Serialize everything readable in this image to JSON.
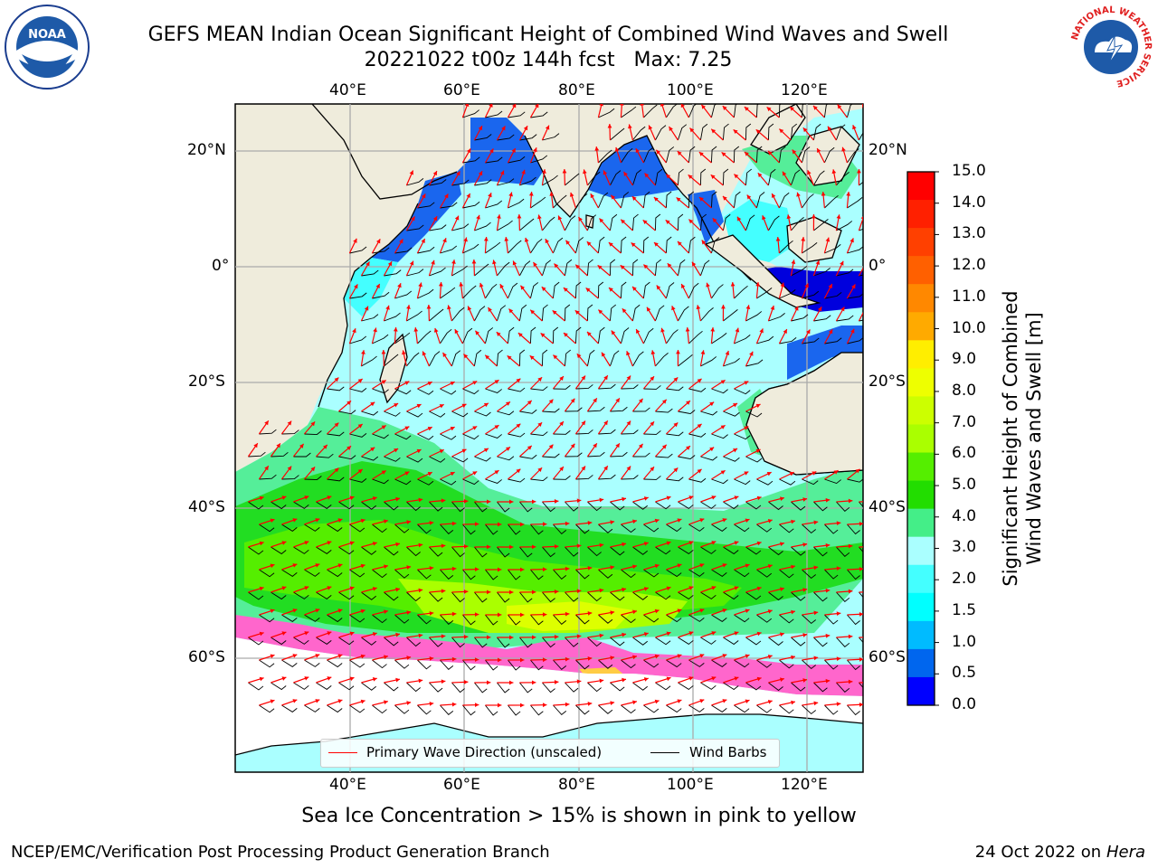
{
  "title": {
    "line1": "GEFS MEAN Indian Ocean Significant Height of Combined Wind Waves and Swell",
    "line2": "20221022 t00z 144h fcst   Max: 7.25"
  },
  "map": {
    "lon_ticks_top": [
      "40°E",
      "60°E",
      "80°E",
      "100°E",
      "120°E"
    ],
    "lon_ticks_bottom": [
      "40°E",
      "60°E",
      "80°E",
      "100°E",
      "120°E"
    ],
    "lat_ticks_left": [
      "20°N",
      "0°",
      "20°S",
      "40°S",
      "60°S"
    ],
    "lat_ticks_right": [
      "20°N",
      "0°",
      "20°S",
      "40°S",
      "60°S"
    ],
    "land_color": "#efecdc",
    "sea_ice_color": "#ffffff"
  },
  "colorbar": {
    "label_line1": "Significant Height of Combined",
    "label_line2": "Wind Waves and Swell [m]",
    "ticks": [
      "15.0",
      "14.0",
      "13.0",
      "12.0",
      "11.0",
      "10.0",
      "9.0",
      "8.0",
      "7.0",
      "6.0",
      "5.0",
      "4.0",
      "3.0",
      "2.0",
      "1.5",
      "1.0",
      "0.5",
      "0.0"
    ],
    "colors_top_to_bottom": [
      "#ff0000",
      "#ff2000",
      "#ff4000",
      "#ff6000",
      "#ff8800",
      "#ffaa00",
      "#ffee00",
      "#eeff00",
      "#ccff00",
      "#aaff00",
      "#55ee00",
      "#22dd00",
      "#44ee88",
      "#aaffff",
      "#44ffff",
      "#00ffff",
      "#00bbff",
      "#0066ee",
      "#0000ff"
    ]
  },
  "legend": {
    "wave_label": "Primary Wave Direction (unscaled)",
    "wave_color": "#ff0000",
    "wind_label": "Wind Barbs",
    "wind_color": "#000000"
  },
  "notes": {
    "sea_ice": "Sea Ice Concentration > 15% is shown in pink to yellow"
  },
  "footer": {
    "left": "NCEP/EMC/Verification Post Processing Product Generation Branch",
    "date": "24 Oct 2022 on",
    "machine": "Hera"
  },
  "logos": {
    "left": "NOAA",
    "right_ring_text": "NATIONAL WEATHER SERVICE"
  }
}
